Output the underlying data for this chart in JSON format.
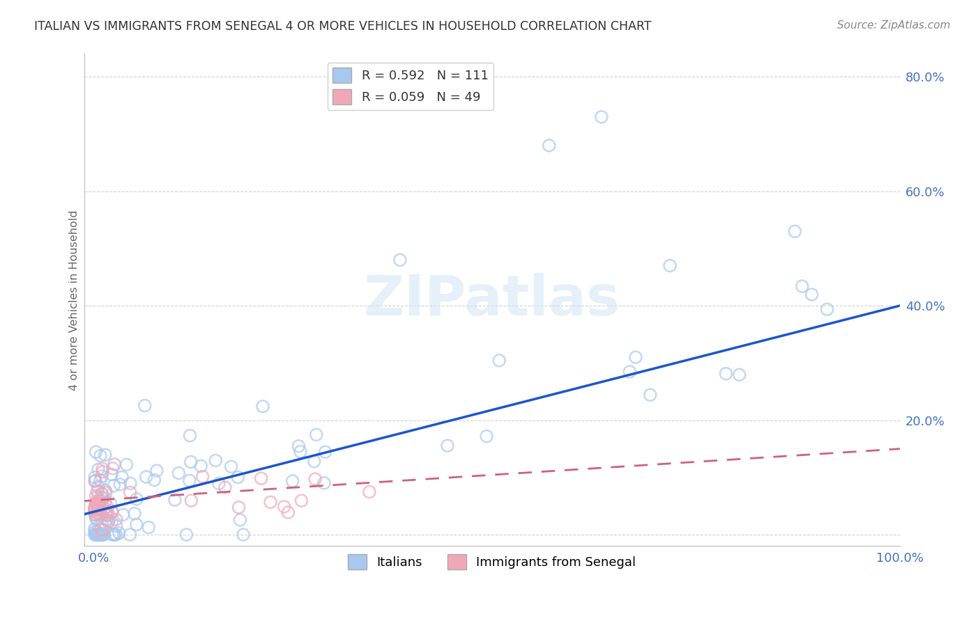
{
  "title": "ITALIAN VS IMMIGRANTS FROM SENEGAL 4 OR MORE VEHICLES IN HOUSEHOLD CORRELATION CHART",
  "source": "Source: ZipAtlas.com",
  "ylabel": "4 or more Vehicles in Household",
  "xlim": [
    -0.012,
    1.0
  ],
  "ylim": [
    -0.02,
    0.84
  ],
  "x_tick_positions": [
    0.0,
    0.2,
    0.4,
    0.6,
    0.8,
    1.0
  ],
  "x_tick_labels": [
    "0.0%",
    "",
    "",
    "",
    "",
    "100.0%"
  ],
  "y_tick_positions": [
    0.0,
    0.2,
    0.4,
    0.6,
    0.8
  ],
  "y_tick_labels": [
    "",
    "20.0%",
    "40.0%",
    "60.0%",
    "80.0%"
  ],
  "color_italian": "#A8C8F0",
  "color_senegal": "#F0A8B8",
  "line_color_italian": "#1A56CC",
  "line_color_senegal": "#D06080",
  "background_color": "#FFFFFF",
  "grid_color": "#CCCCCC",
  "title_color": "#333333",
  "source_color": "#888888",
  "watermark_text": "ZIPatlas",
  "watermark_color": "#D0E4F5",
  "axis_tick_color": "#4472C4",
  "ylabel_color": "#666666",
  "r_italian": 0.592,
  "n_italian": 111,
  "r_senegal": 0.059,
  "n_senegal": 49,
  "legend_label_italian": "Italians",
  "legend_label_senegal": "Immigrants from Senegal",
  "line_intercept_italian": 0.04,
  "line_slope_italian": 0.36,
  "line_intercept_senegal": 0.06,
  "line_slope_senegal": 0.09
}
